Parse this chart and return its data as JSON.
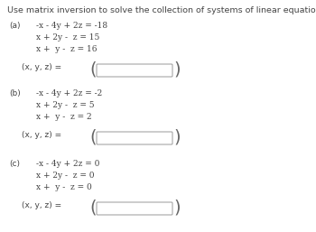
{
  "title": "Use matrix inversion to solve the collection of systems of linear equations.",
  "bg_color": "#ffffff",
  "text_color": "#444444",
  "title_fontsize": 6.8,
  "font_size": 6.5,
  "sections": [
    {
      "label": "(a)",
      "lines": [
        "-x - 4y + 2z = -18",
        "x + 2y -  z = 15",
        "x +  y -  z = 16"
      ],
      "answer_label": "(x, y, z) ="
    },
    {
      "label": "(b)",
      "lines": [
        "-x - 4y + 2z = -2",
        "x + 2y -  z = 5",
        "x +  y -  z = 2"
      ],
      "answer_label": "(x, y, z) ="
    },
    {
      "label": "(c)",
      "lines": [
        "-x - 4y + 2z = 0",
        "x + 2y -  z = 0",
        "x +  y -  z = 0"
      ],
      "answer_label": "(x, y, z) ="
    }
  ]
}
